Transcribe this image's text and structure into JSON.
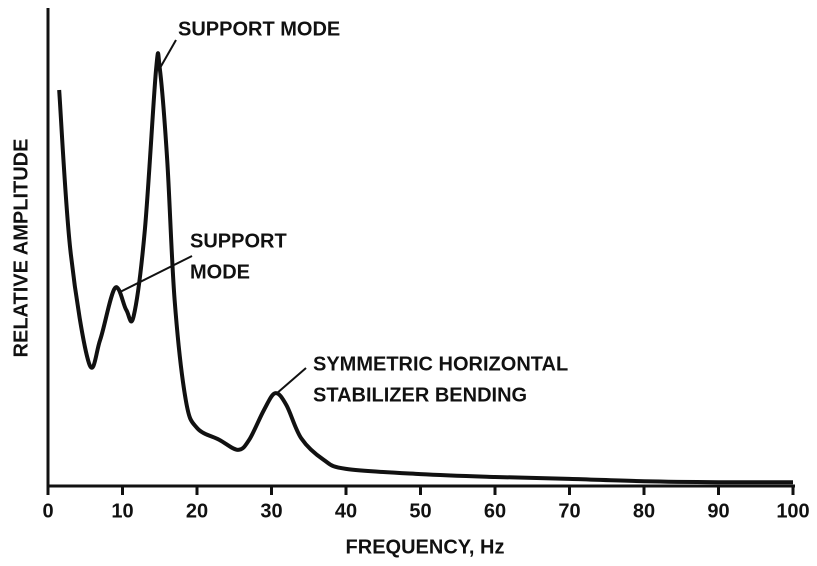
{
  "chart_data": {
    "type": "line",
    "x_label": "FREQUENCY, Hz",
    "y_label": "RELATIVE AMPLITUDE",
    "xlim": [
      0,
      100
    ],
    "xticks": [
      0,
      10,
      20,
      30,
      40,
      50,
      60,
      70,
      80,
      90,
      100
    ],
    "ylim": [
      0,
      100
    ],
    "color": "#111111",
    "x": [
      1.5,
      3,
      5.5,
      7,
      9,
      10.5,
      11.5,
      13,
      14.5,
      15,
      16,
      17,
      18.5,
      20,
      23,
      25.5,
      27,
      29,
      30.5,
      32,
      34,
      37,
      40,
      50,
      60,
      70,
      80,
      90,
      100
    ],
    "values": [
      83.2,
      49.6,
      25.8,
      30.7,
      41.6,
      37,
      35.7,
      53.8,
      87.4,
      87.8,
      68.5,
      39,
      18,
      12.2,
      9.7,
      7.6,
      9.7,
      16,
      19.5,
      17,
      10,
      5.5,
      3.6,
      2.5,
      1.9,
      1.5,
      1,
      0.8,
      0.8
    ],
    "annotations": [
      {
        "lines": [
          "SUPPORT MODE"
        ]
      },
      {
        "lines": [
          "SUPPORT",
          "MODE"
        ]
      },
      {
        "lines": [
          "SYMMETRIC HORIZONTAL",
          "STABILIZER BENDING"
        ]
      }
    ]
  }
}
